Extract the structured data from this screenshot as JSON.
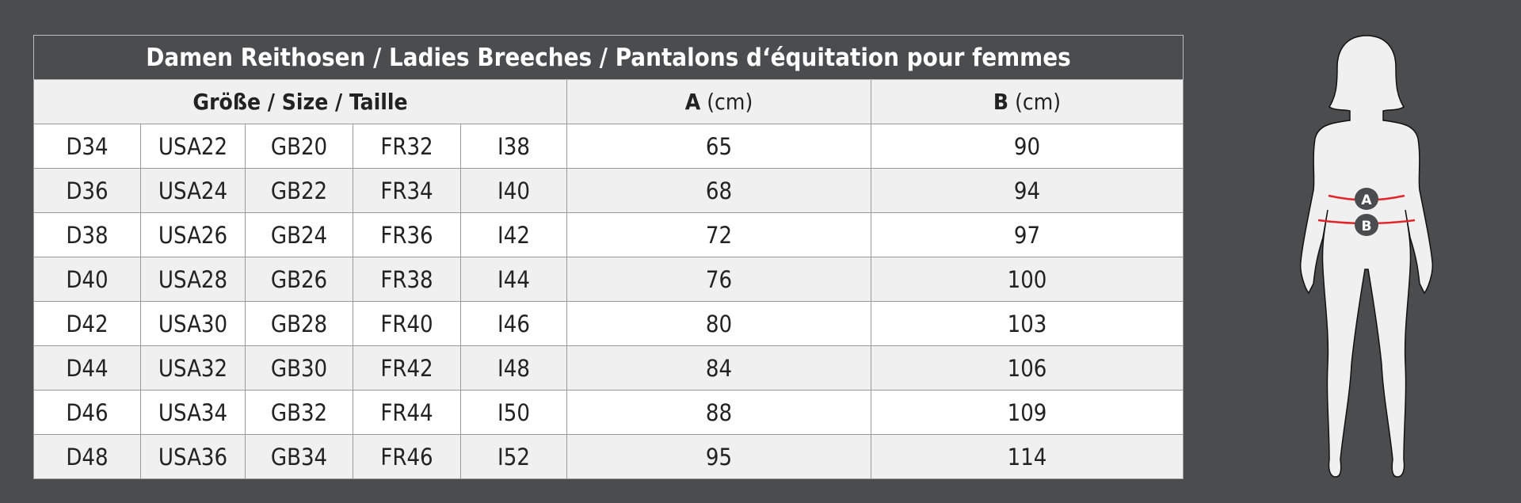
{
  "title": "Damen Reithosen / Ladies Breeches / Pantalons d‘équitation pour femmes",
  "header": {
    "size": "Größe / Size / Taille",
    "a_letter": "A",
    "a_unit": "(cm)",
    "b_letter": "B",
    "b_unit": "(cm)"
  },
  "rows": [
    [
      "D34",
      "USA22",
      "GB20",
      "FR32",
      "I38",
      "65",
      "90"
    ],
    [
      "D36",
      "USA24",
      "GB22",
      "FR34",
      "I40",
      "68",
      "94"
    ],
    [
      "D38",
      "USA26",
      "GB24",
      "FR36",
      "I42",
      "72",
      "97"
    ],
    [
      "D40",
      "USA28",
      "GB26",
      "FR38",
      "I44",
      "76",
      "100"
    ],
    [
      "D42",
      "USA30",
      "GB28",
      "FR40",
      "I46",
      "80",
      "103"
    ],
    [
      "D44",
      "USA32",
      "GB30",
      "FR42",
      "I48",
      "84",
      "106"
    ],
    [
      "D46",
      "USA34",
      "GB32",
      "FR44",
      "I50",
      "88",
      "109"
    ],
    [
      "D48",
      "USA36",
      "GB34",
      "FR46",
      "I52",
      "95",
      "114"
    ]
  ],
  "figure": {
    "marker_a": "A",
    "marker_b": "B",
    "line_color": "#e0262b",
    "marker_color": "#4b4c4e"
  },
  "colors": {
    "background": "#4b4c4e",
    "header_bg": "#f0f0f0"
  }
}
